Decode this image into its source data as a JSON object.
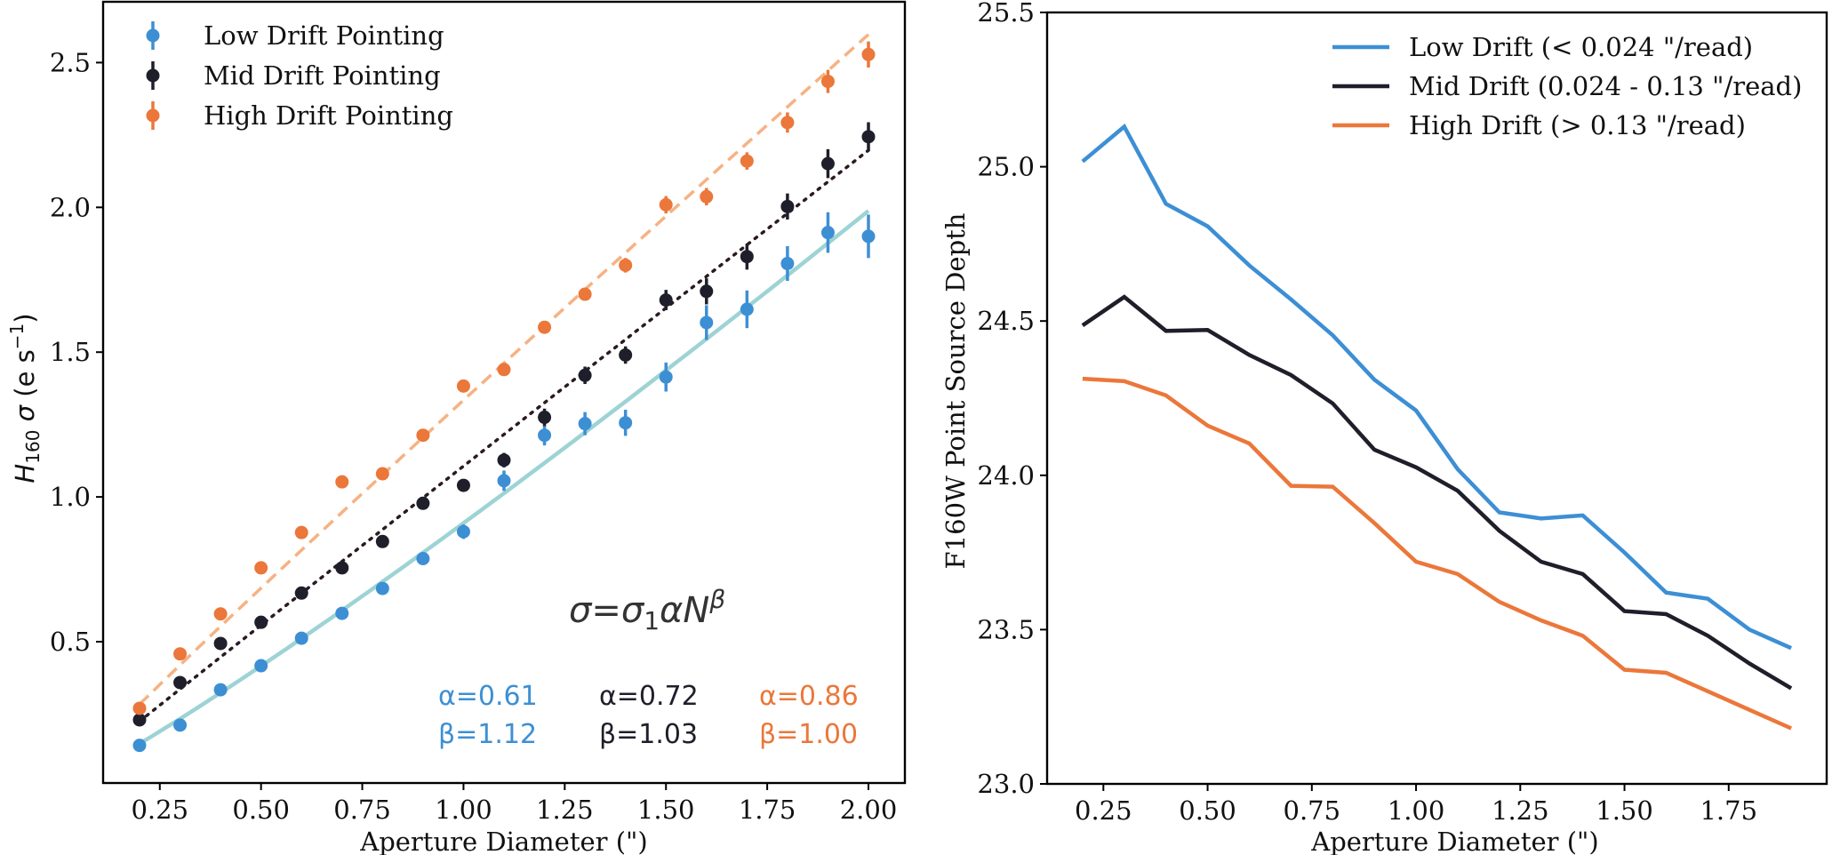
{
  "chart_data": [
    {
      "type": "scatter",
      "title": "",
      "xlabel": "Aperture Diameter (\")",
      "ylabel_parts": {
        "var": "H",
        "sub": "160",
        "sym": " σ",
        "unit": " (e s",
        "sup": "−1",
        "close": ")"
      },
      "ylabel": "H160 σ (e s^-1)",
      "xlim": [
        0.11,
        2.09
      ],
      "ylim": [
        0.012,
        2.71
      ],
      "xticks": [
        0.25,
        0.5,
        0.75,
        1.0,
        1.25,
        1.5,
        1.75,
        2.0
      ],
      "xtick_labels": [
        "0.25",
        "0.50",
        "0.75",
        "1.00",
        "1.25",
        "1.50",
        "1.75",
        "2.00"
      ],
      "yticks": [
        0.5,
        1.0,
        1.5,
        2.0,
        2.5
      ],
      "ytick_labels": [
        "0.5",
        "1.0",
        "1.5",
        "2.0",
        "2.5"
      ],
      "grid": false,
      "legend_position": "top-left",
      "x": [
        0.2,
        0.3,
        0.4,
        0.5,
        0.6,
        0.7,
        0.8,
        0.9,
        1.0,
        1.1,
        1.2,
        1.3,
        1.4,
        1.5,
        1.6,
        1.7,
        1.8,
        1.9,
        2.0
      ],
      "series": [
        {
          "name": "Low Drift Pointing",
          "color": "#3d8fd4",
          "values": [
            0.142,
            0.212,
            0.334,
            0.417,
            0.512,
            0.598,
            0.684,
            0.787,
            0.88,
            1.056,
            1.213,
            1.253,
            1.256,
            1.414,
            1.602,
            1.648,
            1.806,
            1.913,
            1.9
          ],
          "errors": [
            0.01,
            0.01,
            0.01,
            0.01,
            0.01,
            0.01,
            0.015,
            0.02,
            0.025,
            0.035,
            0.035,
            0.04,
            0.045,
            0.05,
            0.06,
            0.065,
            0.06,
            0.07,
            0.075
          ],
          "fit": {
            "style": "solid",
            "color": "#9dd3d5",
            "alpha": 0.61,
            "beta": 1.12,
            "start": 0.148,
            "end": 1.988
          }
        },
        {
          "name": "Mid Drift Pointing",
          "color": "#1f1f2b",
          "values": [
            0.23,
            0.359,
            0.494,
            0.567,
            0.668,
            0.755,
            0.846,
            0.978,
            1.04,
            1.127,
            1.275,
            1.42,
            1.49,
            1.68,
            1.71,
            1.83,
            2.003,
            2.151,
            2.244
          ],
          "errors": [
            0.01,
            0.01,
            0.01,
            0.01,
            0.01,
            0.01,
            0.015,
            0.015,
            0.02,
            0.025,
            0.03,
            0.03,
            0.03,
            0.035,
            0.045,
            0.045,
            0.045,
            0.05,
            0.05
          ],
          "fit": {
            "style": "dotted",
            "color": "#2a1a22",
            "alpha": 0.72,
            "beta": 1.03,
            "start": 0.225,
            "end": 2.197
          }
        },
        {
          "name": "High Drift Pointing",
          "color": "#eb773a",
          "values": [
            0.27,
            0.458,
            0.596,
            0.755,
            0.877,
            1.052,
            1.08,
            1.213,
            1.383,
            1.44,
            1.586,
            1.7,
            1.8,
            2.009,
            2.037,
            2.16,
            2.293,
            2.435,
            2.528
          ],
          "errors": [
            0.01,
            0.01,
            0.01,
            0.01,
            0.01,
            0.01,
            0.01,
            0.015,
            0.015,
            0.015,
            0.02,
            0.02,
            0.025,
            0.03,
            0.03,
            0.03,
            0.035,
            0.04,
            0.045
          ],
          "fit": {
            "style": "dashed",
            "color": "#f6b283",
            "alpha": 0.86,
            "beta": 1.0,
            "start": 0.284,
            "end": 2.597
          }
        }
      ],
      "annotations": {
        "formula": {
          "lhs": "σ=σ",
          "sub": "1",
          "mid": "αN",
          "sup": "β"
        },
        "params": [
          {
            "alpha": "α=0.61",
            "beta": "β=1.12",
            "color": "#3d8fd4"
          },
          {
            "alpha": "α=0.72",
            "beta": "β=1.03",
            "color": "#1f1f2b"
          },
          {
            "alpha": "α=0.86",
            "beta": "β=1.00",
            "color": "#eb773a"
          }
        ]
      }
    },
    {
      "type": "line",
      "title": "",
      "xlabel": "Aperture Diameter (\")",
      "ylabel": "F160W Point Source Depth",
      "xlim": [
        0.115,
        1.985
      ],
      "ylim": [
        23.0,
        25.5
      ],
      "xticks": [
        0.25,
        0.5,
        0.75,
        1.0,
        1.25,
        1.5,
        1.75
      ],
      "xtick_labels": [
        "0.25",
        "0.50",
        "0.75",
        "1.00",
        "1.25",
        "1.50",
        "1.75"
      ],
      "yticks": [
        23.0,
        23.5,
        24.0,
        24.5,
        25.0,
        25.5
      ],
      "ytick_labels": [
        "23.0",
        "23.5",
        "24.0",
        "24.5",
        "25.0",
        "25.5"
      ],
      "grid": false,
      "legend_position": "top-right",
      "x": [
        0.2,
        0.3,
        0.4,
        0.5,
        0.6,
        0.7,
        0.8,
        0.9,
        1.0,
        1.1,
        1.2,
        1.3,
        1.4,
        1.5,
        1.6,
        1.7,
        1.8,
        1.9
      ],
      "series": [
        {
          "name": "Low Drift (< 0.024 \"/read)",
          "color": "#3d8fd4",
          "values": [
            25.017,
            25.13,
            24.88,
            24.807,
            24.68,
            24.57,
            24.454,
            24.31,
            24.21,
            24.02,
            23.88,
            23.86,
            23.87,
            23.75,
            23.62,
            23.6,
            23.5,
            23.44
          ]
        },
        {
          "name": "Mid Drift (0.024 - 0.13 \"/read)",
          "color": "#1f1f2b",
          "values": [
            24.486,
            24.578,
            24.468,
            24.471,
            24.39,
            24.325,
            24.233,
            24.083,
            24.026,
            23.95,
            23.82,
            23.72,
            23.68,
            23.56,
            23.55,
            23.48,
            23.39,
            23.31
          ]
        },
        {
          "name": "High Drift (> 0.13 \"/read)",
          "color": "#eb773a",
          "values": [
            24.313,
            24.305,
            24.259,
            24.161,
            24.103,
            23.966,
            23.963,
            23.845,
            23.72,
            23.68,
            23.59,
            23.53,
            23.48,
            23.37,
            23.36,
            23.3,
            23.24,
            23.18
          ]
        }
      ]
    }
  ]
}
